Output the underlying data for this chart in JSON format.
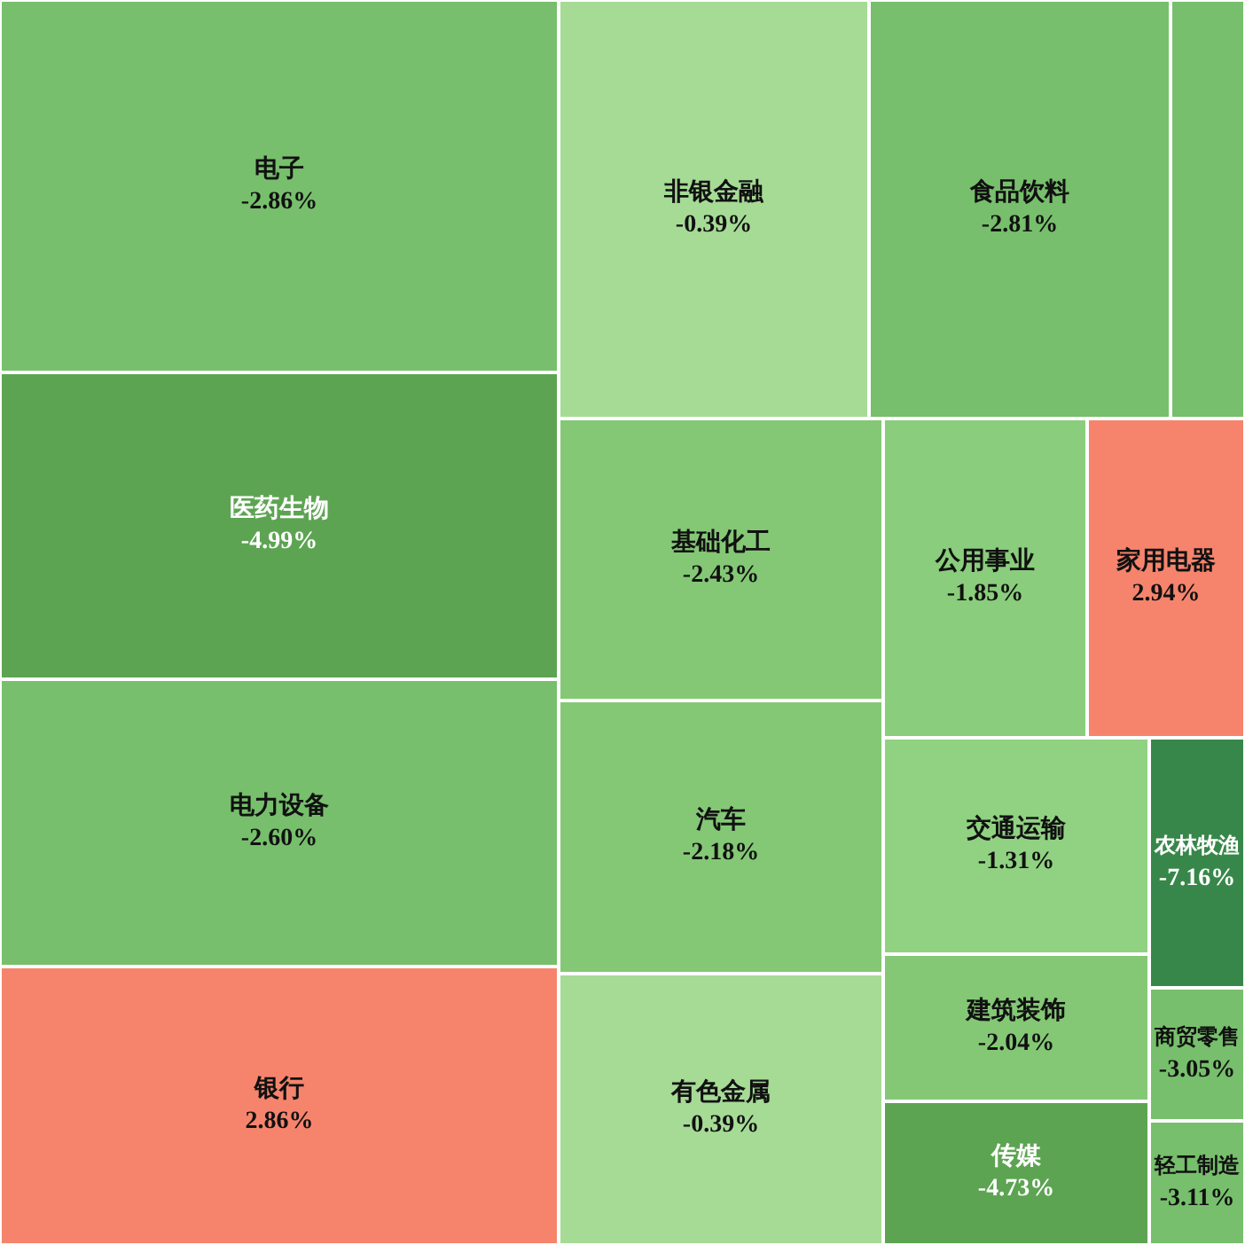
{
  "chart_data": {
    "type": "other",
    "categories": [
      "电子",
      "医药生物",
      "电力设备",
      "银行",
      "非银金融",
      "基础化工",
      "汽车",
      "有色金属",
      "食品饮料",
      null,
      "公用事业",
      "家用电器",
      "交通运输",
      "建筑装饰",
      "传媒",
      "农林牧渔",
      "商贸零售",
      "轻工制造"
    ],
    "values": [
      -2.86,
      -4.99,
      -2.6,
      2.86,
      -0.39,
      -2.43,
      -2.18,
      -0.39,
      -2.81,
      null,
      -1.85,
      2.94,
      -1.31,
      -2.04,
      -4.73,
      -7.16,
      -3.05,
      -3.11
    ],
    "value_labels": [
      "-2.86%",
      "-4.99%",
      "-2.60%",
      "2.86%",
      "-0.39%",
      "-2.43%",
      "-2.18%",
      "-0.39%",
      "-2.81%",
      null,
      "-1.85%",
      "2.94%",
      "-1.31%",
      "-2.04%",
      "-4.73%",
      "-7.16%",
      "-3.05%",
      "-3.11%"
    ],
    "colors": [
      "#77bf6c",
      "#5da452",
      "#77bf6c",
      "#f6846d",
      "#a6db96",
      "#84c876",
      "#84c876",
      "#a6db96",
      "#77bf6c",
      "#77bf6c",
      "#8acd7c",
      "#f6846d",
      "#90d282",
      "#84c876",
      "#5da452",
      "#38874a",
      "#77bf6c",
      "#77bf6c"
    ]
  }
}
